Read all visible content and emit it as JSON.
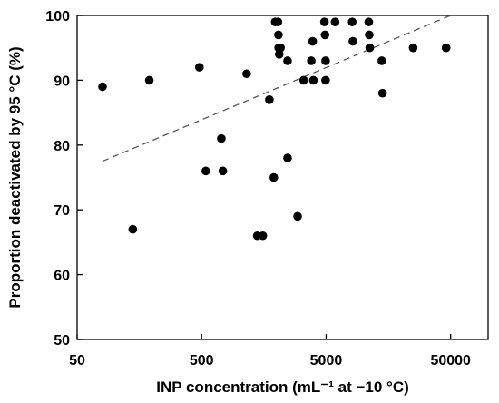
{
  "chart_data": {
    "type": "scatter",
    "xlabel": "INP concentration (mL⁻¹ at −10 °C)",
    "ylabel": "Proportion deactivated by 95 °C (%)",
    "x_scale": "log",
    "xlim": [
      50,
      100000
    ],
    "ylim": [
      50,
      100
    ],
    "x_ticks": [
      50,
      500,
      5000,
      50000
    ],
    "x_tick_labels": [
      "50",
      "500",
      "5000",
      "50000"
    ],
    "y_ticks": [
      50,
      60,
      70,
      80,
      90,
      100
    ],
    "y_tick_labels": [
      "50",
      "60",
      "70",
      "80",
      "90",
      "100"
    ],
    "grid": false,
    "legend": "none",
    "points": [
      {
        "x": 80,
        "y": 89
      },
      {
        "x": 140,
        "y": 67
      },
      {
        "x": 190,
        "y": 90
      },
      {
        "x": 480,
        "y": 92
      },
      {
        "x": 540,
        "y": 76
      },
      {
        "x": 720,
        "y": 81
      },
      {
        "x": 740,
        "y": 76
      },
      {
        "x": 1150,
        "y": 91
      },
      {
        "x": 1400,
        "y": 66
      },
      {
        "x": 1550,
        "y": 66
      },
      {
        "x": 1750,
        "y": 87
      },
      {
        "x": 1900,
        "y": 75
      },
      {
        "x": 1950,
        "y": 99
      },
      {
        "x": 2050,
        "y": 99
      },
      {
        "x": 2070,
        "y": 97
      },
      {
        "x": 2080,
        "y": 95
      },
      {
        "x": 2100,
        "y": 94
      },
      {
        "x": 2150,
        "y": 95
      },
      {
        "x": 2450,
        "y": 93
      },
      {
        "x": 2450,
        "y": 78
      },
      {
        "x": 2950,
        "y": 69
      },
      {
        "x": 3300,
        "y": 90
      },
      {
        "x": 3800,
        "y": 93
      },
      {
        "x": 3900,
        "y": 96
      },
      {
        "x": 3950,
        "y": 90
      },
      {
        "x": 4850,
        "y": 99
      },
      {
        "x": 4900,
        "y": 97
      },
      {
        "x": 4950,
        "y": 93
      },
      {
        "x": 4950,
        "y": 90
      },
      {
        "x": 5900,
        "y": 99
      },
      {
        "x": 8100,
        "y": 99
      },
      {
        "x": 8200,
        "y": 96
      },
      {
        "x": 11000,
        "y": 99
      },
      {
        "x": 11100,
        "y": 97
      },
      {
        "x": 11200,
        "y": 95
      },
      {
        "x": 14000,
        "y": 93
      },
      {
        "x": 14200,
        "y": 88
      },
      {
        "x": 25000,
        "y": 95
      },
      {
        "x": 46000,
        "y": 95
      }
    ],
    "trendline": {
      "style": "dashed",
      "points": [
        [
          80,
          77.5
        ],
        [
          50000,
          100
        ]
      ]
    },
    "colors": {
      "marker": "#000000",
      "trendline": "#555555",
      "axis": "#000000"
    }
  }
}
